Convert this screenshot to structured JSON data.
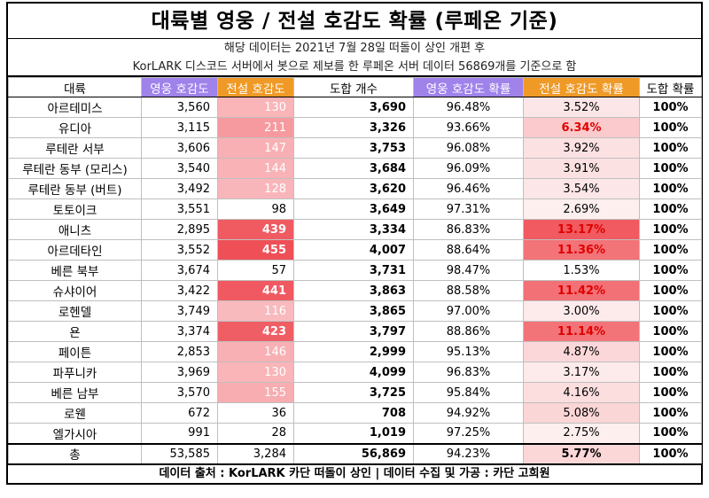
{
  "title": "대륙별 영웅 / 전설 호감도 확률 (루페온 기준)",
  "subtitle_1": "해당 데이터는 2021년 7월 28일 떠돌이 상인 개편 후",
  "subtitle_2": "KorLARK 디스코드 서버에서 봇으로 제보를 한 루페온 서버 데이터 56869개를 기준으로 함",
  "columns": [
    "대륙",
    "영웅 호감도",
    "전설 호감도",
    "도합 개수",
    "영웅 호감도 확률",
    "전설 호감도 확률",
    "도합 확률"
  ],
  "colors": {
    "purple": "#9f82ea",
    "orange": "#ef9a26",
    "red_text": "#e00000"
  },
  "rows": [
    {
      "name": "아르테미스",
      "hero": "3,560",
      "legend": "130",
      "total": "3,690",
      "hero_pct": "96.48%",
      "legend_pct": "3.52%",
      "total_pct": "100%",
      "legend_level": 0.3,
      "legend_pct_level": 0.15
    },
    {
      "name": "유디아",
      "hero": "3,115",
      "legend": "211",
      "total": "3,326",
      "hero_pct": "93.66%",
      "legend_pct": "6.34%",
      "total_pct": "100%",
      "legend_level": 0.48,
      "legend_pct_level": 0.32
    },
    {
      "name": "루테란 서부",
      "hero": "3,606",
      "legend": "147",
      "total": "3,753",
      "hero_pct": "96.08%",
      "legend_pct": "3.92%",
      "total_pct": "100%",
      "legend_level": 0.33,
      "legend_pct_level": 0.18
    },
    {
      "name": "루테란 동부 (모리스)",
      "hero": "3,540",
      "legend": "144",
      "total": "3,684",
      "hero_pct": "96.09%",
      "legend_pct": "3.91%",
      "total_pct": "100%",
      "legend_level": 0.32,
      "legend_pct_level": 0.18
    },
    {
      "name": "루테란 동부 (버트)",
      "hero": "3,492",
      "legend": "128",
      "total": "3,620",
      "hero_pct": "96.46%",
      "legend_pct": "3.54%",
      "total_pct": "100%",
      "legend_level": 0.29,
      "legend_pct_level": 0.15
    },
    {
      "name": "토토이크",
      "hero": "3,551",
      "legend": "98",
      "total": "3,649",
      "hero_pct": "97.31%",
      "legend_pct": "2.69%",
      "total_pct": "100%",
      "legend_level": 0.0,
      "legend_pct_level": 0.1
    },
    {
      "name": "애니츠",
      "hero": "2,895",
      "legend": "439",
      "total": "3,334",
      "hero_pct": "86.83%",
      "legend_pct": "13.17%",
      "total_pct": "100%",
      "legend_level": 0.92,
      "legend_pct_level": 1.0
    },
    {
      "name": "아르데타인",
      "hero": "3,552",
      "legend": "455",
      "total": "4,007",
      "hero_pct": "88.64%",
      "legend_pct": "11.36%",
      "total_pct": "100%",
      "legend_level": 1.0,
      "legend_pct_level": 0.85
    },
    {
      "name": "베른 북부",
      "hero": "3,674",
      "legend": "57",
      "total": "3,731",
      "hero_pct": "98.47%",
      "legend_pct": "1.53%",
      "total_pct": "100%",
      "legend_level": 0.0,
      "legend_pct_level": 0.0
    },
    {
      "name": "슈샤이어",
      "hero": "3,422",
      "legend": "441",
      "total": "3,863",
      "hero_pct": "88.58%",
      "legend_pct": "11.42%",
      "total_pct": "100%",
      "legend_level": 0.93,
      "legend_pct_level": 0.86
    },
    {
      "name": "로헨델",
      "hero": "3,749",
      "legend": "116",
      "total": "3,865",
      "hero_pct": "97.00%",
      "legend_pct": "3.00%",
      "total_pct": "100%",
      "legend_level": 0.26,
      "legend_pct_level": 0.12
    },
    {
      "name": "욘",
      "hero": "3,374",
      "legend": "423",
      "total": "3,797",
      "hero_pct": "88.86%",
      "legend_pct": "11.14%",
      "total_pct": "100%",
      "legend_level": 0.9,
      "legend_pct_level": 0.84
    },
    {
      "name": "페이튼",
      "hero": "2,853",
      "legend": "146",
      "total": "2,999",
      "hero_pct": "95.13%",
      "legend_pct": "4.87%",
      "total_pct": "100%",
      "legend_level": 0.33,
      "legend_pct_level": 0.24
    },
    {
      "name": "파푸니카",
      "hero": "3,969",
      "legend": "130",
      "total": "4,099",
      "hero_pct": "96.83%",
      "legend_pct": "3.17%",
      "total_pct": "100%",
      "legend_level": 0.3,
      "legend_pct_level": 0.13
    },
    {
      "name": "베른 남부",
      "hero": "3,570",
      "legend": "155",
      "total": "3,725",
      "hero_pct": "95.84%",
      "legend_pct": "4.16%",
      "total_pct": "100%",
      "legend_level": 0.35,
      "legend_pct_level": 0.2
    },
    {
      "name": "로웬",
      "hero": "672",
      "legend": "36",
      "total": "708",
      "hero_pct": "94.92%",
      "legend_pct": "5.08%",
      "total_pct": "100%",
      "legend_level": 0.0,
      "legend_pct_level": 0.25
    },
    {
      "name": "엘가시아",
      "hero": "991",
      "legend": "28",
      "total": "1,019",
      "hero_pct": "97.25%",
      "legend_pct": "2.75%",
      "total_pct": "100%",
      "legend_level": 0.0,
      "legend_pct_level": 0.1
    }
  ],
  "total_row": {
    "name": "총",
    "hero": "53,585",
    "legend": "3,284",
    "total": "56,869",
    "hero_pct": "94.23%",
    "legend_pct": "5.77%",
    "total_pct": "100%"
  },
  "footer": "데이터 출처 : KorLARK 카단 떠돌이 상인   |   데이터 수집 및 가공 : 카단 고희원"
}
